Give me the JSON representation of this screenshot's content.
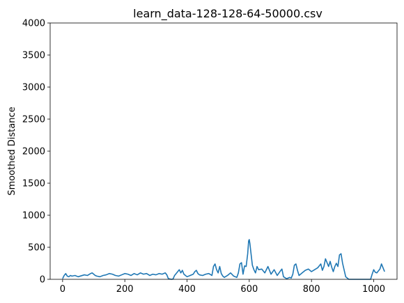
{
  "chart_data": {
    "type": "line",
    "title": "learn_data-128-128-64-50000.csv",
    "xlabel": "",
    "ylabel": "Smoothed Distance",
    "xlim": [
      -40,
      1075
    ],
    "ylim": [
      0,
      4000
    ],
    "x_ticks": [
      0,
      200,
      400,
      600,
      800,
      1000
    ],
    "y_ticks": [
      0,
      500,
      1000,
      1500,
      2000,
      2500,
      3000,
      3500,
      4000
    ],
    "x_tick_labels": [
      "0",
      "200",
      "400",
      "600",
      "800",
      "1000"
    ],
    "y_tick_labels": [
      "0",
      "500",
      "1000",
      "1500",
      "2000",
      "2500",
      "3000",
      "3500",
      "4000"
    ],
    "grid": false,
    "series": [
      {
        "color": "#1f77b4",
        "x": [
          0,
          5,
          10,
          15,
          20,
          25,
          30,
          40,
          50,
          60,
          70,
          80,
          90,
          95,
          100,
          105,
          110,
          120,
          130,
          140,
          150,
          160,
          170,
          180,
          190,
          200,
          210,
          220,
          230,
          240,
          250,
          260,
          270,
          280,
          290,
          300,
          310,
          320,
          330,
          335,
          340,
          350,
          355,
          360,
          365,
          370,
          375,
          380,
          385,
          390,
          395,
          400,
          410,
          420,
          425,
          430,
          435,
          440,
          450,
          460,
          470,
          480,
          485,
          490,
          495,
          500,
          505,
          510,
          515,
          520,
          530,
          540,
          550,
          560,
          565,
          570,
          575,
          580,
          585,
          590,
          595,
          598,
          600,
          602,
          605,
          610,
          615,
          620,
          625,
          630,
          640,
          650,
          660,
          670,
          680,
          690,
          700,
          705,
          710,
          720,
          730,
          735,
          740,
          745,
          750,
          755,
          760,
          770,
          780,
          790,
          800,
          810,
          820,
          830,
          835,
          840,
          845,
          850,
          855,
          860,
          865,
          870,
          875,
          880,
          885,
          890,
          895,
          900,
          910,
          920,
          940,
          960,
          980,
          990,
          995,
          1000,
          1005,
          1010,
          1015,
          1020,
          1025,
          1030,
          1035
        ],
        "values": [
          10,
          60,
          90,
          50,
          40,
          60,
          50,
          60,
          40,
          55,
          70,
          60,
          90,
          100,
          80,
          60,
          50,
          40,
          60,
          70,
          90,
          80,
          60,
          50,
          70,
          90,
          80,
          60,
          90,
          70,
          100,
          80,
          90,
          60,
          80,
          70,
          90,
          80,
          100,
          70,
          10,
          0,
          5,
          60,
          90,
          120,
          150,
          100,
          140,
          80,
          60,
          40,
          60,
          80,
          120,
          140,
          90,
          70,
          60,
          80,
          90,
          60,
          200,
          240,
          150,
          100,
          200,
          90,
          50,
          30,
          60,
          100,
          50,
          30,
          100,
          240,
          260,
          80,
          210,
          200,
          400,
          600,
          620,
          560,
          430,
          220,
          150,
          100,
          200,
          150,
          160,
          100,
          200,
          80,
          150,
          60,
          130,
          160,
          40,
          10,
          30,
          20,
          80,
          220,
          240,
          140,
          60,
          100,
          140,
          160,
          120,
          150,
          180,
          240,
          140,
          200,
          320,
          260,
          200,
          280,
          190,
          120,
          200,
          250,
          200,
          380,
          400,
          250,
          40,
          0,
          0,
          0,
          0,
          0,
          80,
          150,
          110,
          100,
          130,
          160,
          240,
          180,
          120
        ]
      }
    ]
  }
}
